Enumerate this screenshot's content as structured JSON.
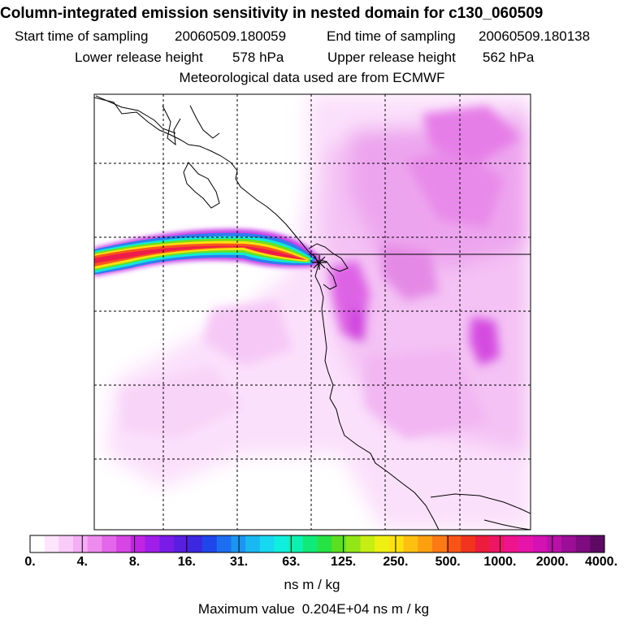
{
  "header": {
    "title": "Column-integrated emission sensitivity in nested domain for c130_060509",
    "start_label": "Start time of sampling",
    "start_value": "20060509.180059",
    "end_label": "End time of sampling",
    "end_value": "20060509.180138",
    "lower_label": "Lower release height",
    "lower_value": "578 hPa",
    "upper_label": "Upper release height",
    "upper_value": "562 hPa",
    "met_note": "Meteorological data used are from ECMWF"
  },
  "colorbar": {
    "ticks": [
      "0.",
      "4.",
      "8.",
      "16.",
      "31.",
      "63.",
      "125.",
      "250.",
      "500.",
      "1000.",
      "2000.",
      "4000."
    ],
    "colors": [
      "#ffffff",
      "#fde6fd",
      "#f9cbf9",
      "#f5adf5",
      "#ee8bee",
      "#e466ea",
      "#d845e6",
      "#c224e4",
      "#a11ee8",
      "#7a1ce8",
      "#5a1ee0",
      "#3b28e0",
      "#1f46ea",
      "#1b6ef0",
      "#1a96f2",
      "#1ab8f2",
      "#17d8ee",
      "#10eedd",
      "#0cf0b0",
      "#10ea78",
      "#26e242",
      "#5ae020",
      "#92e616",
      "#c6ee12",
      "#eef012",
      "#fde010",
      "#fdc010",
      "#fda010",
      "#fb7a14",
      "#f75418",
      "#f2341e",
      "#ee1c3c",
      "#ee1466",
      "#ee148e",
      "#e614a8",
      "#d412b4",
      "#b810a8",
      "#9c0e96",
      "#7e0c80",
      "#5e0a64"
    ],
    "unit": "ns m / kg",
    "max_label": "Maximum value",
    "max_value": "0.204E+04 ns m / kg"
  },
  "map": {
    "release_marker": "release-site"
  }
}
